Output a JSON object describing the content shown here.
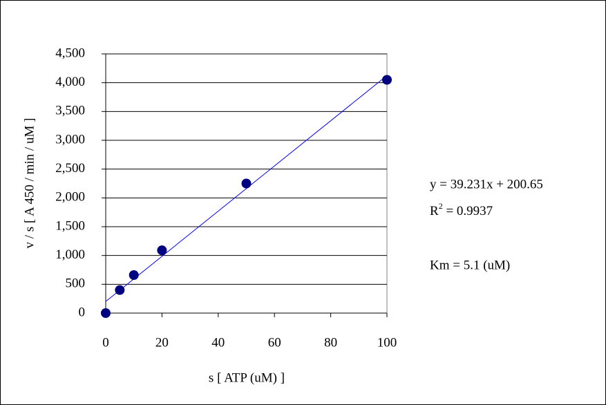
{
  "chart_data": {
    "type": "scatter",
    "x_label": "s [ ATP (uM) ]",
    "y_label": "v / s [ A 450 / min / uM ]",
    "x": [
      0,
      5,
      10,
      20,
      50,
      100
    ],
    "values": [
      0,
      400,
      660,
      1090,
      2250,
      4050
    ],
    "color": "#000080",
    "trendline": {
      "x": [
        0,
        100
      ],
      "values": [
        200.65,
        4123.75
      ],
      "color": "#0000ff"
    },
    "xlim": [
      0,
      100
    ],
    "xticks": [
      0,
      20,
      40,
      60,
      80,
      100
    ],
    "ylim": [
      0,
      4500
    ],
    "yticks": [
      0,
      500,
      {
        "value": 1000,
        "label": "1,000"
      },
      {
        "value": 1500,
        "label": "1,500"
      },
      {
        "value": 2000,
        "label": "2,000"
      },
      {
        "value": 2500,
        "label": "2,500"
      },
      {
        "value": 3000,
        "label": "3,000"
      },
      {
        "value": 3500,
        "label": "3,500"
      },
      {
        "value": 4000,
        "label": "4,000"
      },
      {
        "value": 4500,
        "label": "4,500"
      }
    ],
    "grid": true,
    "equation": "y = 39.231x + 200.65",
    "r_squared": [
      "R",
      "2",
      " = 0.9937"
    ],
    "km": "Km = 5.1 (uM)"
  }
}
